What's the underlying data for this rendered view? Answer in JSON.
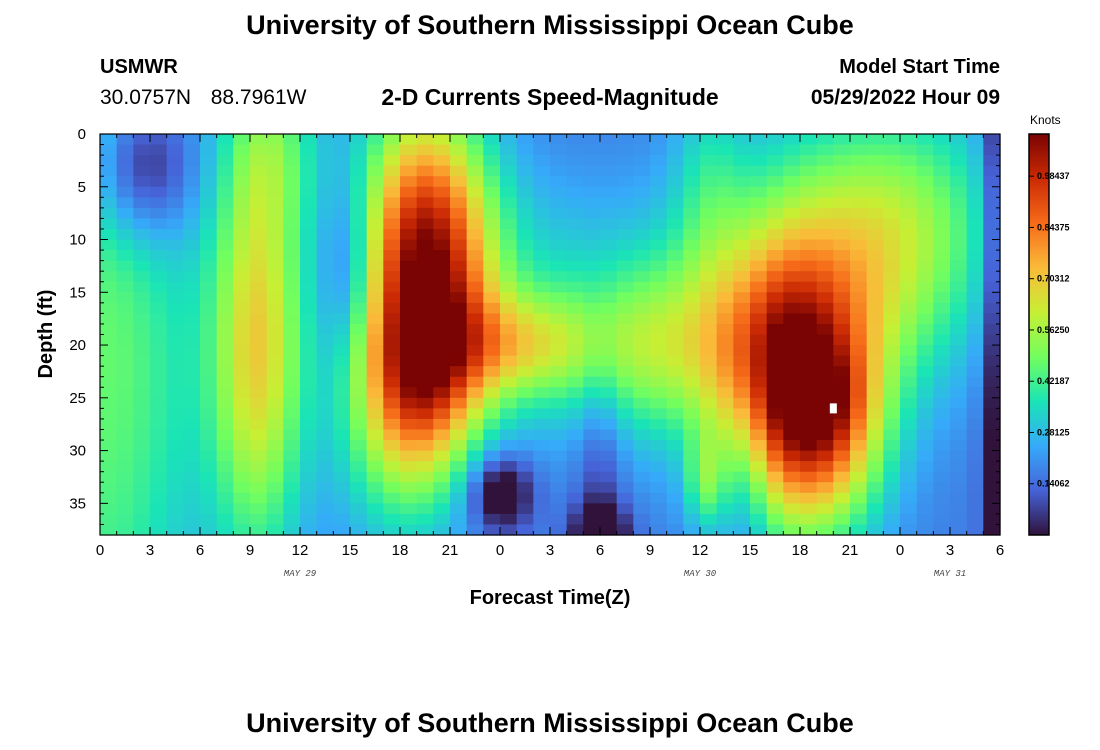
{
  "header": {
    "title": "University of Southern Mississippi Ocean Cube",
    "station": "USMWR",
    "coords": "30.0757N  88.7961W",
    "subtitle": "2-D Currents Speed-Magnitude",
    "start_label": "Model Start Time",
    "start_value": "05/29/2022 Hour 09"
  },
  "footer": {
    "title": "University of Southern Mississippi Ocean Cube"
  },
  "chart_data": {
    "type": "heatmap",
    "xlabel": "Forecast Time(Z)",
    "ylabel": "Depth (ft)",
    "x_tick_labels": [
      "0",
      "3",
      "6",
      "9",
      "12",
      "15",
      "18",
      "21",
      "0",
      "3",
      "6",
      "9",
      "12",
      "15",
      "18",
      "21",
      "0",
      "3",
      "6"
    ],
    "day_labels": [
      {
        "label": "MAY 29",
        "hour": 12
      },
      {
        "label": "MAY 30",
        "hour": 36
      },
      {
        "label": "MAY 31",
        "hour": 51
      }
    ],
    "y_tick_labels": [
      "0",
      "5",
      "10",
      "15",
      "20",
      "25",
      "30",
      "35"
    ],
    "y_ticks": [
      0,
      5,
      10,
      15,
      20,
      25,
      30,
      35
    ],
    "xlim": [
      0,
      54
    ],
    "ylim": [
      0,
      38
    ],
    "y_inverted": true,
    "colorbar": {
      "unit": "Knots",
      "tick_labels": [
        "0.98437",
        "0.84375",
        "0.70312",
        "0.56250",
        "0.42187",
        "0.28125",
        "0.14062"
      ],
      "tick_values": [
        0.98437,
        0.84375,
        0.70312,
        0.5625,
        0.42187,
        0.28125,
        0.14062
      ],
      "range": [
        0,
        1.1
      ],
      "colormap": [
        "#30123b",
        "#4662d7",
        "#36aaf9",
        "#1ae4b6",
        "#72fe5e",
        "#c7ef34",
        "#faba39",
        "#f66b19",
        "#cb2a04",
        "#7a0403"
      ]
    },
    "blobs": [
      {
        "x": 0.0,
        "y": 18,
        "sx": 4,
        "sy": 40,
        "v": 0.28
      },
      {
        "x": 2.5,
        "y": 3,
        "sx": 2.2,
        "sy": 5,
        "v": -0.3
      },
      {
        "x": 4.0,
        "y": 24,
        "sx": 3,
        "sy": 10,
        "v": 0.04
      },
      {
        "x": 9.5,
        "y": 20,
        "sx": 2.0,
        "sy": 14,
        "v": 0.5
      },
      {
        "x": 10.5,
        "y": 1,
        "sx": 2.0,
        "sy": 6,
        "v": 0.18
      },
      {
        "x": 15.0,
        "y": 13,
        "sx": 1.2,
        "sy": 6,
        "v": -0.17
      },
      {
        "x": 19.5,
        "y": 12,
        "sx": 2.8,
        "sy": 10,
        "v": 0.9
      },
      {
        "x": 19.0,
        "y": 24,
        "sx": 2.6,
        "sy": 6,
        "v": 0.35
      },
      {
        "x": 18.0,
        "y": 31,
        "sx": 2.8,
        "sy": 7,
        "v": 0.18
      },
      {
        "x": 22.0,
        "y": 20,
        "sx": 3.5,
        "sy": 4,
        "v": 0.12
      },
      {
        "x": 26.0,
        "y": 10,
        "sx": 4,
        "sy": 5,
        "v": 0.05
      },
      {
        "x": 25.5,
        "y": 20,
        "sx": 3.0,
        "sy": 3.5,
        "v": 0.25
      },
      {
        "x": 30.0,
        "y": 7,
        "sx": 6,
        "sy": 6,
        "v": 0.02
      },
      {
        "x": 35.0,
        "y": 20,
        "sx": 7,
        "sy": 7,
        "v": 0.28
      },
      {
        "x": 32.5,
        "y": 20,
        "sx": 3.5,
        "sy": 5,
        "v": 0.12
      },
      {
        "x": 24.0,
        "y": 34,
        "sx": 1.3,
        "sy": 2.5,
        "v": -0.3
      },
      {
        "x": 30.0,
        "y": 32,
        "sx": 1.0,
        "sy": 10,
        "v": -0.12
      },
      {
        "x": 30.0,
        "y": 38,
        "sx": 1.2,
        "sy": 2,
        "v": -0.25
      },
      {
        "x": 36.3,
        "y": 33,
        "sx": 0.8,
        "sy": 3,
        "v": 0.2
      },
      {
        "x": 36.5,
        "y": 4,
        "sx": 1.5,
        "sy": 7,
        "v": 0.13
      },
      {
        "x": 39.0,
        "y": 30,
        "sx": 1.0,
        "sy": 9,
        "v": -0.12
      },
      {
        "x": 41.0,
        "y": 25,
        "sx": 2.8,
        "sy": 9,
        "v": 0.6
      },
      {
        "x": 44.0,
        "y": 28,
        "sx": 2.5,
        "sy": 7,
        "v": 0.4
      },
      {
        "x": 43.5,
        "y": 25,
        "sx": 1.5,
        "sy": 3,
        "v": 0.12
      },
      {
        "x": 44.0,
        "y": 12,
        "sx": 5,
        "sy": 9,
        "v": 0.35
      },
      {
        "x": 49.0,
        "y": 8,
        "sx": 4,
        "sy": 8,
        "v": 0.2
      },
      {
        "x": 54.0,
        "y": 18,
        "sx": 0.7,
        "sy": 40,
        "v": -0.25
      }
    ],
    "base_value": 0.17,
    "grid_columns": 54,
    "grid_rows": 38,
    "marker": {
      "hour": 44,
      "depth": 26
    }
  }
}
